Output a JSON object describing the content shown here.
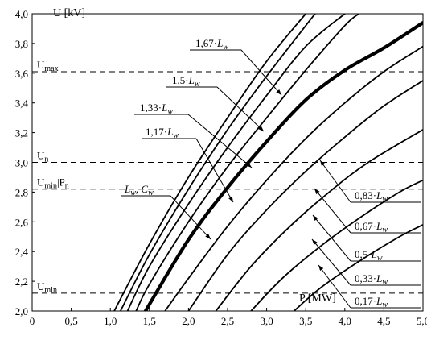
{
  "chart_data": {
    "type": "line",
    "xlabel": "P [MW]",
    "ylabel": "U [kV]",
    "xlim": [
      0,
      5.0
    ],
    "ylim": [
      2.0,
      4.0
    ],
    "grid": false,
    "x_ticks": [
      "0",
      "0,5",
      "1,0",
      "1,5",
      "2,0",
      "2,5",
      "3,0",
      "3,5",
      "4,0",
      "4,5",
      "5,0"
    ],
    "y_ticks": [
      "2,0",
      "2,2",
      "2,4",
      "2,6",
      "2,8",
      "3,0",
      "3,2",
      "3,4",
      "3,6",
      "3,8",
      "4,0"
    ],
    "ref_lines": [
      {
        "label": "U",
        "sub": "max",
        "y": 3.61
      },
      {
        "label": "U",
        "sub": "n",
        "y": 3.0
      },
      {
        "label": "U",
        "sub": "min",
        "suffix": "|P",
        "sub2": "n",
        "y": 2.82
      },
      {
        "label": "U",
        "sub": "min",
        "y": 2.12
      }
    ],
    "series": [
      {
        "label": {
          "coef": "1,67·",
          "L": "L",
          "sub": "w"
        },
        "bold": false,
        "points": [
          [
            1.05,
            2.0
          ],
          [
            1.5,
            2.45
          ],
          [
            2.0,
            2.9
          ],
          [
            2.5,
            3.3
          ],
          [
            3.0,
            3.68
          ],
          [
            3.5,
            4.0
          ]
        ]
      },
      {
        "label": {
          "coef": "1,5·",
          "L": "L",
          "sub": "w"
        },
        "bold": false,
        "points": [
          [
            1.13,
            2.0
          ],
          [
            1.5,
            2.38
          ],
          [
            2.0,
            2.82
          ],
          [
            2.5,
            3.22
          ],
          [
            3.0,
            3.58
          ],
          [
            3.5,
            3.92
          ],
          [
            3.62,
            4.0
          ]
        ]
      },
      {
        "label": {
          "coef": "1,33·",
          "L": "L",
          "sub": "w"
        },
        "bold": false,
        "points": [
          [
            1.22,
            2.0
          ],
          [
            1.5,
            2.3
          ],
          [
            2.0,
            2.72
          ],
          [
            2.5,
            3.1
          ],
          [
            3.0,
            3.45
          ],
          [
            3.5,
            3.78
          ],
          [
            4.0,
            4.0
          ]
        ]
      },
      {
        "label": {
          "coef": "1,17·",
          "L": "L",
          "sub": "w"
        },
        "bold": false,
        "points": [
          [
            1.33,
            2.0
          ],
          [
            1.5,
            2.18
          ],
          [
            2.0,
            2.6
          ],
          [
            2.5,
            2.97
          ],
          [
            3.0,
            3.3
          ],
          [
            3.5,
            3.62
          ],
          [
            4.0,
            3.92
          ],
          [
            4.18,
            4.0
          ]
        ]
      },
      {
        "label": {
          "coef": "",
          "L": "L",
          "sub": "w",
          "extra": ", C",
          "sub2": "w"
        },
        "bold": true,
        "points": [
          [
            1.45,
            2.0
          ],
          [
            2.0,
            2.48
          ],
          [
            2.5,
            2.83
          ],
          [
            3.0,
            3.14
          ],
          [
            3.5,
            3.42
          ],
          [
            4.0,
            3.62
          ],
          [
            4.5,
            3.77
          ],
          [
            5.0,
            3.94
          ]
        ]
      },
      {
        "label": {
          "coef": "0,83·",
          "L": "L",
          "sub": "w"
        },
        "bold": false,
        "points": [
          [
            1.7,
            2.0
          ],
          [
            2.0,
            2.22
          ],
          [
            2.5,
            2.57
          ],
          [
            3.0,
            2.88
          ],
          [
            3.5,
            3.16
          ],
          [
            4.0,
            3.4
          ],
          [
            4.5,
            3.61
          ],
          [
            5.0,
            3.78
          ]
        ]
      },
      {
        "label": {
          "coef": "0,67·",
          "L": "L",
          "sub": "w"
        },
        "bold": false,
        "points": [
          [
            2.0,
            2.0
          ],
          [
            2.5,
            2.38
          ],
          [
            3.0,
            2.68
          ],
          [
            3.5,
            2.94
          ],
          [
            4.0,
            3.17
          ],
          [
            4.5,
            3.38
          ],
          [
            5.0,
            3.55
          ]
        ]
      },
      {
        "label": {
          "coef": "0,5·",
          "L": "L",
          "sub": "w"
        },
        "bold": false,
        "points": [
          [
            2.35,
            2.0
          ],
          [
            2.8,
            2.3
          ],
          [
            3.3,
            2.57
          ],
          [
            3.8,
            2.8
          ],
          [
            4.3,
            3.0
          ],
          [
            5.0,
            3.22
          ]
        ]
      },
      {
        "label": {
          "coef": "0,33·",
          "L": "L",
          "sub": "w"
        },
        "bold": false,
        "points": [
          [
            2.8,
            2.0
          ],
          [
            3.2,
            2.22
          ],
          [
            3.7,
            2.44
          ],
          [
            4.2,
            2.63
          ],
          [
            4.7,
            2.8
          ],
          [
            5.0,
            2.88
          ]
        ]
      },
      {
        "label": {
          "coef": "0,17·",
          "L": "L",
          "sub": "w"
        },
        "bold": false,
        "points": [
          [
            3.35,
            2.0
          ],
          [
            3.7,
            2.16
          ],
          [
            4.2,
            2.34
          ],
          [
            4.7,
            2.5
          ],
          [
            5.0,
            2.58
          ]
        ]
      }
    ]
  }
}
